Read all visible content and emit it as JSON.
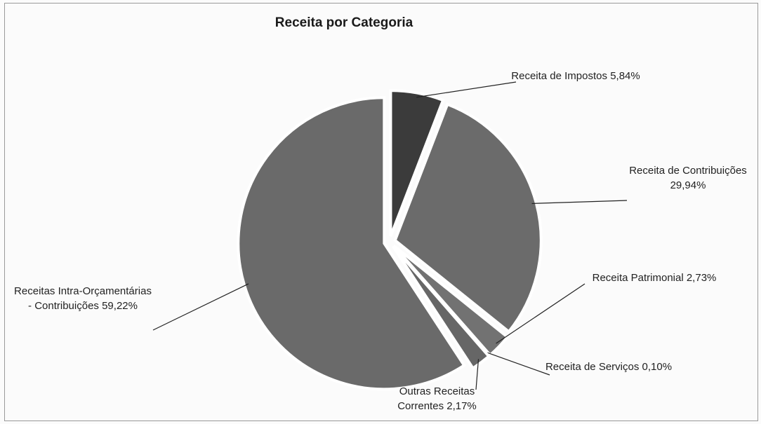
{
  "chart_data": {
    "type": "pie",
    "title": "Receita por Categoria",
    "categories": [
      "Receita de Impostos",
      "Receita de Contribuições",
      "Receita Patrimonial",
      "Receita de Serviços",
      "Outras Receitas Correntes",
      "Receitas Intra-Orçamentárias - Contribuições"
    ],
    "values": [
      5.84,
      29.94,
      2.73,
      0.1,
      2.17,
      59.22
    ],
    "value_labels": [
      "5,84%",
      "29,94%",
      "2,73%",
      "0,10%",
      "2,17%",
      "59,22%"
    ],
    "colors": [
      "#3b3b3b",
      "#6b6b6b",
      "#727272",
      "#5e5e5e",
      "#666666",
      "#6a6a6a"
    ]
  }
}
